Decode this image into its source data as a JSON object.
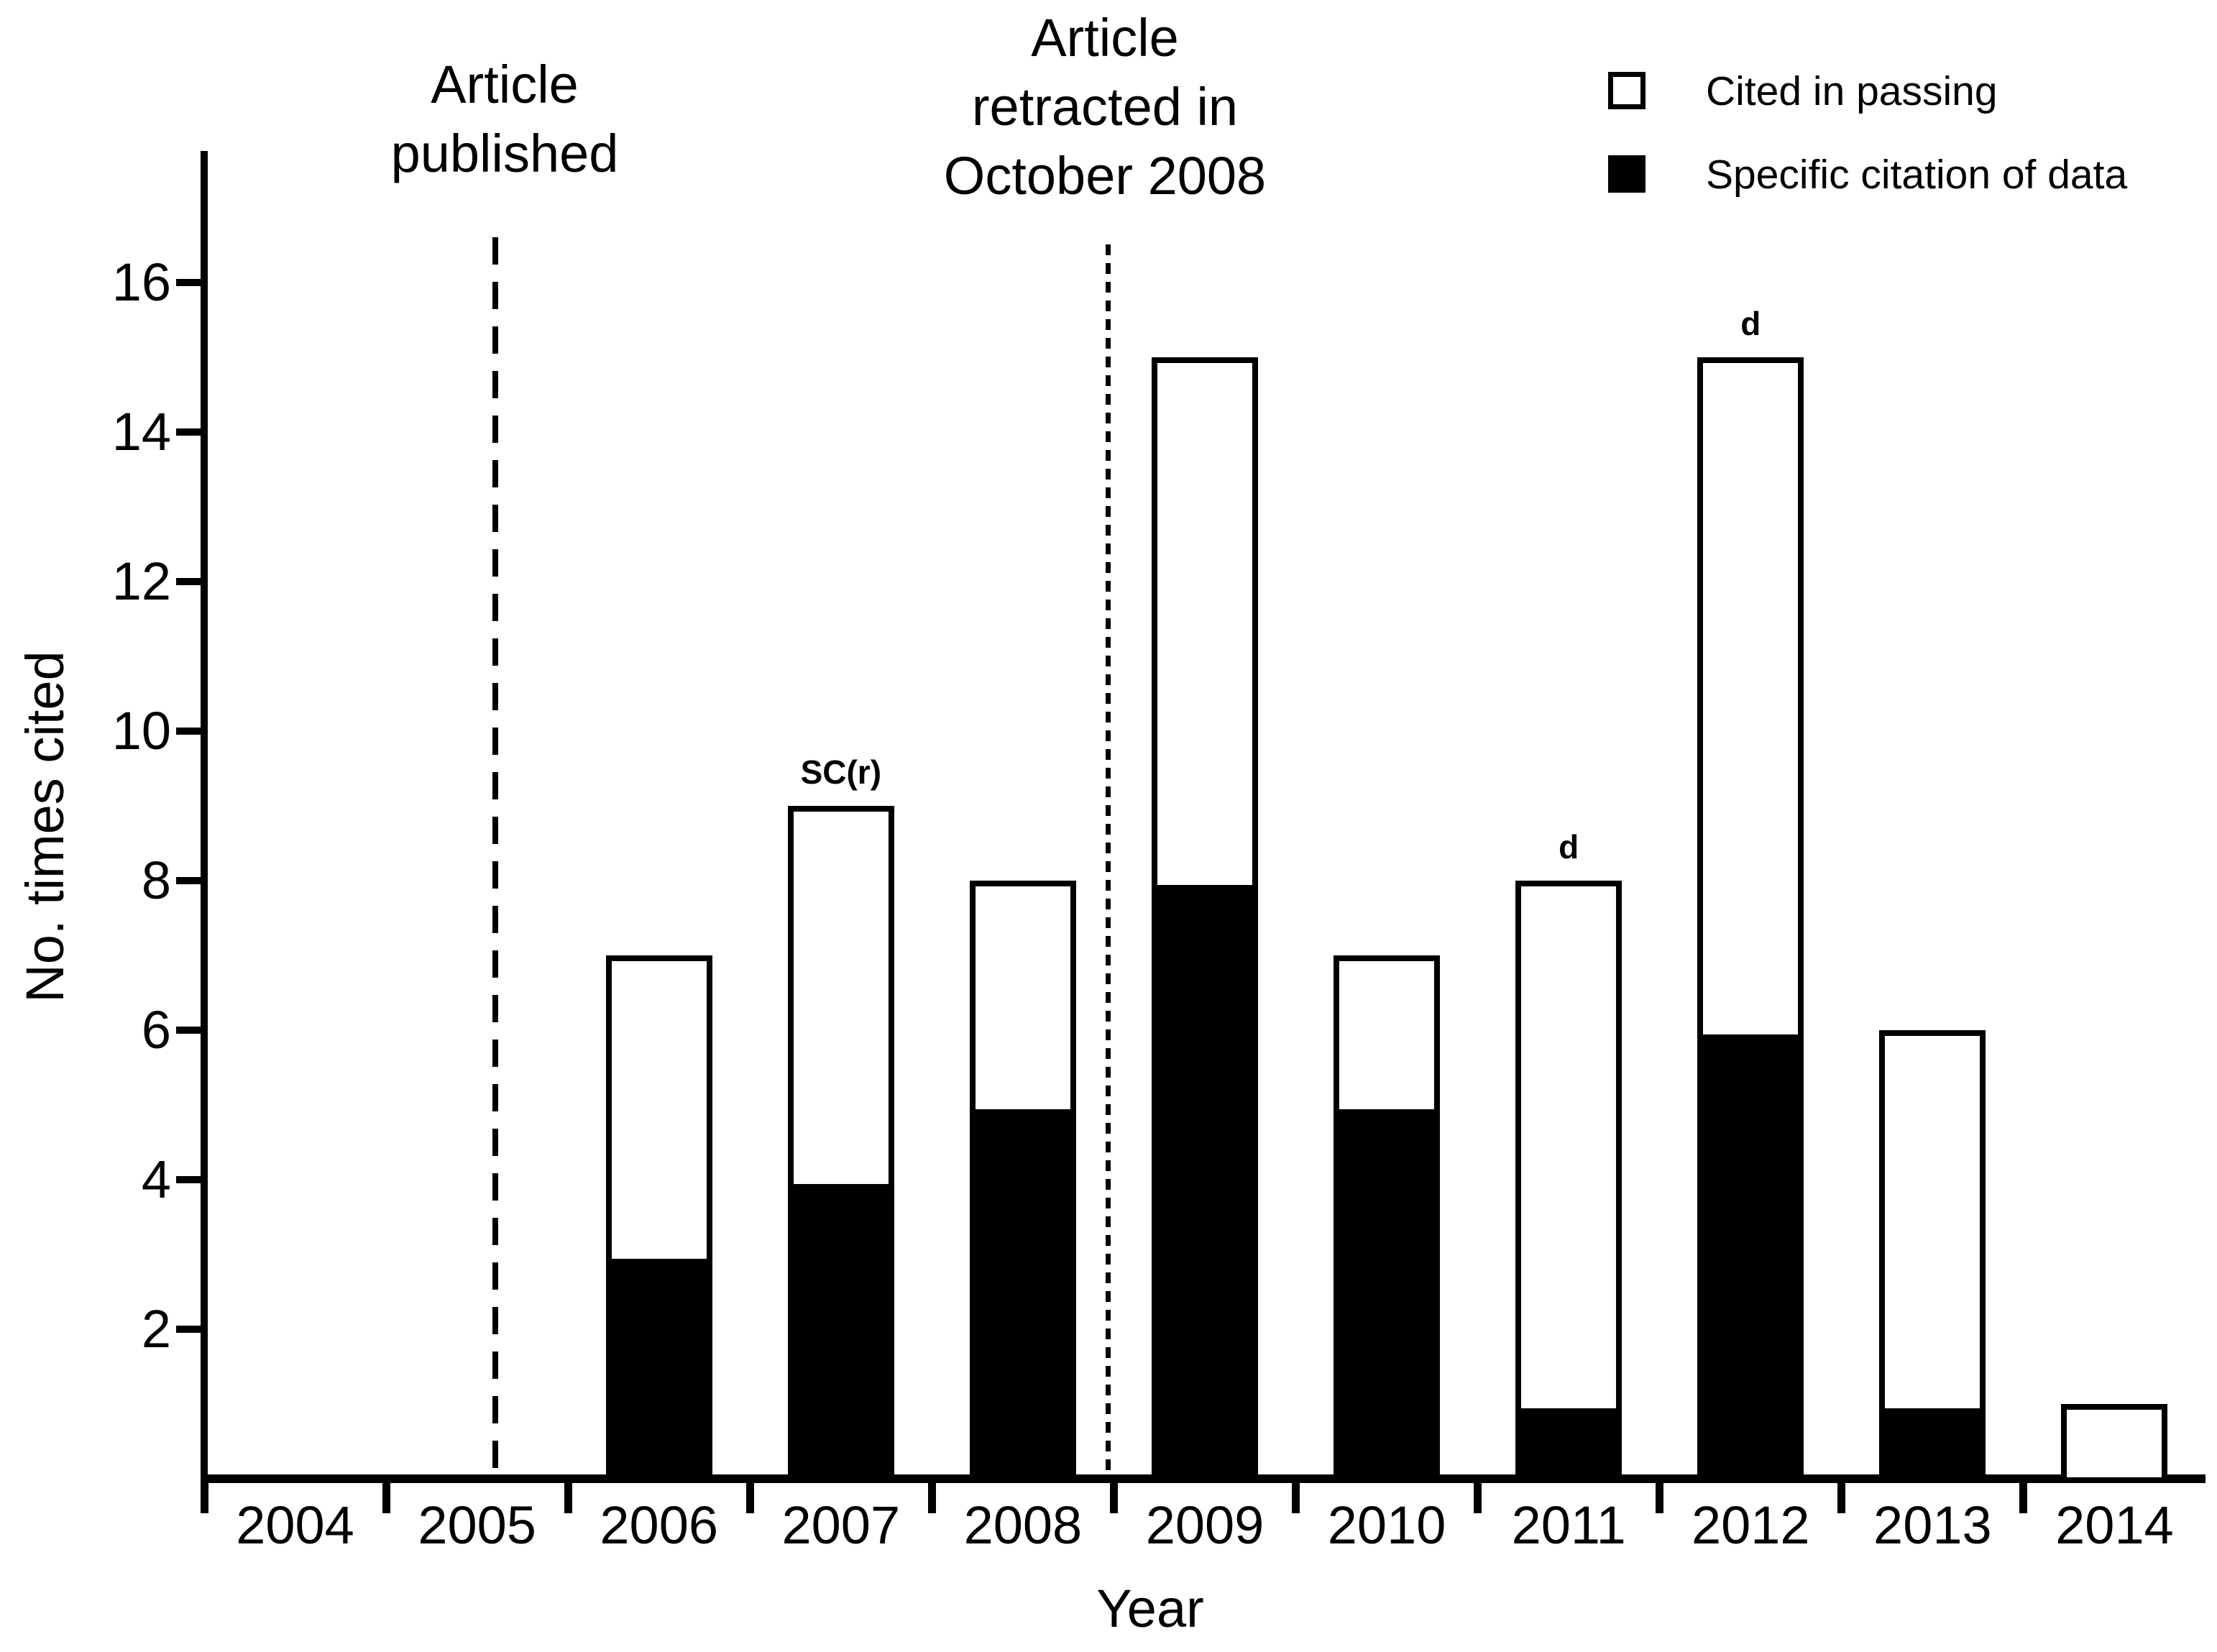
{
  "figure": {
    "published_label": {
      "line1": "Article",
      "line2": "published"
    },
    "retracted_label": {
      "line1": "Article",
      "line2": "retracted in",
      "line3": "October 2008"
    },
    "legend": [
      {
        "label": "Cited in passing",
        "swatch": "open"
      },
      {
        "label": "Specific citation of data",
        "swatch": "filled"
      }
    ],
    "chart_data": {
      "type": "bar",
      "stacked": true,
      "title": "",
      "xlabel": "Year",
      "ylabel": "No. times cited",
      "categories": [
        "2004",
        "2005",
        "2006",
        "2007",
        "2008",
        "2009",
        "2010",
        "2011",
        "2012",
        "2013",
        "2014"
      ],
      "series": [
        {
          "name": "Specific citation of data",
          "color": "#000000",
          "values": [
            0,
            0,
            3,
            4,
            5,
            8,
            5,
            1,
            6,
            1,
            0
          ]
        },
        {
          "name": "Cited in passing",
          "color": "#ffffff",
          "values": [
            0,
            0,
            4,
            5,
            3,
            7,
            2,
            7,
            9,
            5,
            1
          ]
        }
      ],
      "totals": [
        0,
        0,
        7,
        9,
        8,
        15,
        7,
        8,
        15,
        6,
        1
      ],
      "yticks": [
        2,
        4,
        6,
        8,
        10,
        12,
        14,
        16
      ],
      "ylim": [
        0,
        17
      ],
      "grid": false,
      "legend_position": "top-right",
      "bar_annotations": [
        {
          "category": "2007",
          "text": "SC(r)"
        },
        {
          "category": "2011",
          "text": "d"
        },
        {
          "category": "2012",
          "text": "d"
        }
      ],
      "vlines": [
        {
          "label": "Article published",
          "x_years_from_left": 1.6,
          "style": "long-dash"
        },
        {
          "label": "Article retracted in October 2008",
          "x_years_from_left": 4.97,
          "style": "short-dash"
        }
      ],
      "colors": {
        "ink": "#000000",
        "background": "#ffffff"
      }
    }
  }
}
